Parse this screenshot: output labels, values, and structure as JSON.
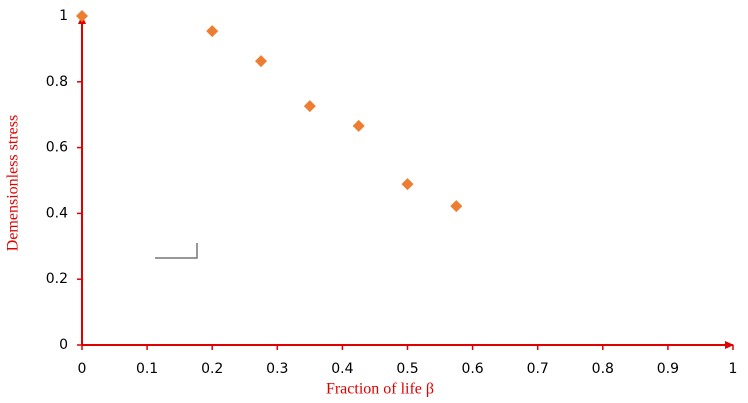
{
  "chart_data": {
    "type": "scatter",
    "x_label": "Fraction of life β",
    "y_label": "Demensionless stress",
    "series": [
      {
        "color": "#ed7d31",
        "x": [
          0,
          0.2,
          0.275,
          0.35,
          0.425,
          0.5,
          0.575
        ],
        "values": [
          1,
          0.954,
          0.863,
          0.726,
          0.666,
          0.489,
          0.422
        ]
      }
    ],
    "xlim": [
      0,
      1
    ],
    "xticks": [
      0,
      0.1,
      0.2,
      0.3,
      0.4,
      0.5,
      0.6,
      0.7,
      0.8,
      0.9,
      1
    ],
    "ylim": [
      0,
      1
    ],
    "yticks": [
      0,
      0.2,
      0.4,
      0.6,
      0.8,
      1
    ],
    "axis_color": "#e00000",
    "grid": false
  }
}
